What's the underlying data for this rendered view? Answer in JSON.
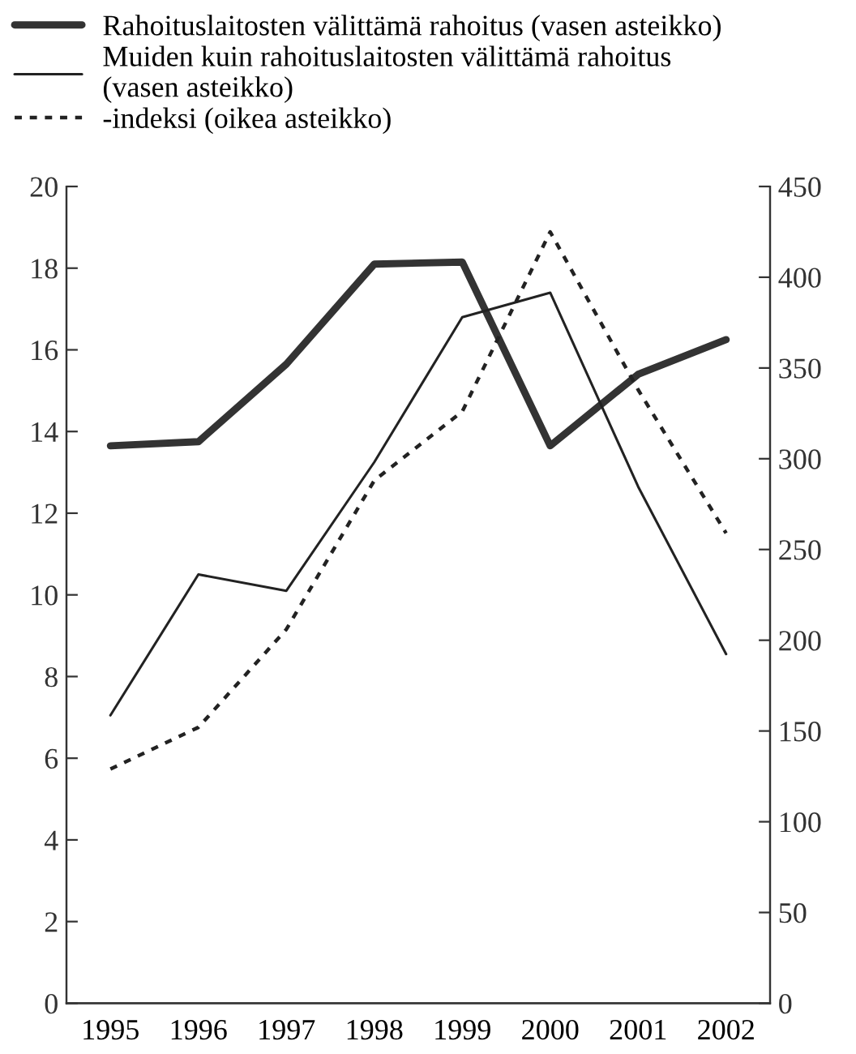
{
  "chart_data": {
    "type": "line",
    "categories": [
      "1995",
      "1996",
      "1997",
      "1998",
      "1999",
      "2000",
      "2001",
      "2002"
    ],
    "series": [
      {
        "name": "Rahoituslaitosten välittämä rahoitus (vasen asteikko)",
        "color": "#333333",
        "line_style": "solid",
        "values": [
          13.65,
          13.75,
          15.65,
          18.1,
          18.15,
          13.65,
          15.4,
          16.25
        ]
      },
      {
        "name": "Muiden kuin rahoituslaitosten välittämä rahoitus\n(vasen asteikko)",
        "color": "#222222",
        "line_style": "solid",
        "values": [
          7.05,
          10.5,
          10.1,
          13.25,
          16.8,
          17.4,
          12.65,
          8.55
        ]
      },
      {
        "name": "-indeksi (oikea asteikko)",
        "color": "#222222",
        "line_style": "dotted",
        "axis": "y2",
        "values": [
          129,
          152,
          206,
          288,
          326,
          425,
          338,
          259
        ]
      }
    ],
    "ylim": [
      0,
      20
    ],
    "yticks": [
      0,
      2,
      4,
      6,
      8,
      10,
      12,
      14,
      16,
      18,
      20
    ],
    "y2lim": [
      0,
      450
    ],
    "y2ticks": [
      0,
      50,
      100,
      150,
      200,
      250,
      300,
      350,
      400,
      450
    ],
    "grid": false,
    "legend": "top",
    "marker": "none"
  }
}
